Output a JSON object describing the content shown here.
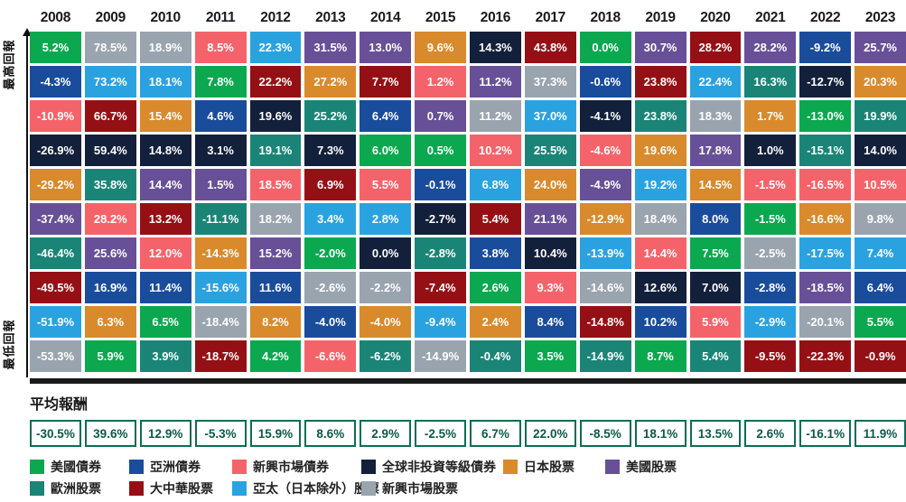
{
  "axis": {
    "highest_label": "最高回報",
    "lowest_label": "最低回報"
  },
  "average": {
    "label": "平均報酬"
  },
  "assets": {
    "us_bonds": {
      "label": "美國債券",
      "color": "#0BA84F"
    },
    "asia_bonds": {
      "label": "亞洲債券",
      "color": "#1A4C9C"
    },
    "em_bonds": {
      "label": "新興市場債券",
      "color": "#F5636A"
    },
    "global_hy": {
      "label": "全球非投資等級債券",
      "color": "#13203B"
    },
    "japan": {
      "label": "日本股票",
      "color": "#D88A2C"
    },
    "us_stocks": {
      "label": "美國股票",
      "color": "#675097"
    },
    "europe": {
      "label": "歐洲股票",
      "color": "#1A8577"
    },
    "greater_china": {
      "label": "大中華股票",
      "color": "#951015"
    },
    "apxj": {
      "label": "亞太（日本除外）股票",
      "color": "#2BA2E0"
    },
    "em_stocks": {
      "label": "新興市場股票",
      "color": "#9AA4AF"
    }
  },
  "legend_rows": [
    [
      "us_bonds",
      "asia_bonds",
      "em_bonds",
      "global_hy",
      "japan",
      "us_stocks"
    ],
    [
      "europe",
      "greater_china",
      "apxj",
      "em_stocks"
    ]
  ],
  "chart_data": {
    "type": "table",
    "description": "Yearly asset class returns ranked highest to lowest, 2008-2023, with average return per year",
    "years": [
      "2008",
      "2009",
      "2010",
      "2011",
      "2012",
      "2013",
      "2014",
      "2015",
      "2016",
      "2017",
      "2018",
      "2019",
      "2020",
      "2021",
      "2022",
      "2023"
    ],
    "columns": [
      {
        "year": "2008",
        "avg": "-30.5%",
        "cells": [
          {
            "v": "5.2%",
            "a": "us_bonds"
          },
          {
            "v": "-4.3%",
            "a": "asia_bonds"
          },
          {
            "v": "-10.9%",
            "a": "em_bonds"
          },
          {
            "v": "-26.9%",
            "a": "global_hy"
          },
          {
            "v": "-29.2%",
            "a": "japan"
          },
          {
            "v": "-37.4%",
            "a": "us_stocks"
          },
          {
            "v": "-46.4%",
            "a": "europe"
          },
          {
            "v": "-49.5%",
            "a": "greater_china"
          },
          {
            "v": "-51.9%",
            "a": "apxj"
          },
          {
            "v": "-53.3%",
            "a": "em_stocks"
          }
        ]
      },
      {
        "year": "2009",
        "avg": "39.6%",
        "cells": [
          {
            "v": "78.5%",
            "a": "em_stocks"
          },
          {
            "v": "73.2%",
            "a": "apxj"
          },
          {
            "v": "66.7%",
            "a": "greater_china"
          },
          {
            "v": "59.4%",
            "a": "global_hy"
          },
          {
            "v": "35.8%",
            "a": "europe"
          },
          {
            "v": "28.2%",
            "a": "em_bonds"
          },
          {
            "v": "25.6%",
            "a": "us_stocks"
          },
          {
            "v": "16.9%",
            "a": "asia_bonds"
          },
          {
            "v": "6.3%",
            "a": "japan"
          },
          {
            "v": "5.9%",
            "a": "us_bonds"
          }
        ]
      },
      {
        "year": "2010",
        "avg": "12.9%",
        "cells": [
          {
            "v": "18.9%",
            "a": "em_stocks"
          },
          {
            "v": "18.1%",
            "a": "apxj"
          },
          {
            "v": "15.4%",
            "a": "japan"
          },
          {
            "v": "14.8%",
            "a": "global_hy"
          },
          {
            "v": "14.4%",
            "a": "us_stocks"
          },
          {
            "v": "13.2%",
            "a": "greater_china"
          },
          {
            "v": "12.0%",
            "a": "em_bonds"
          },
          {
            "v": "11.4%",
            "a": "asia_bonds"
          },
          {
            "v": "6.5%",
            "a": "us_bonds"
          },
          {
            "v": "3.9%",
            "a": "europe"
          }
        ]
      },
      {
        "year": "2011",
        "avg": "-5.3%",
        "cells": [
          {
            "v": "8.5%",
            "a": "em_bonds"
          },
          {
            "v": "7.8%",
            "a": "us_bonds"
          },
          {
            "v": "4.6%",
            "a": "asia_bonds"
          },
          {
            "v": "3.1%",
            "a": "global_hy"
          },
          {
            "v": "1.5%",
            "a": "us_stocks"
          },
          {
            "v": "-11.1%",
            "a": "europe"
          },
          {
            "v": "-14.3%",
            "a": "japan"
          },
          {
            "v": "-15.6%",
            "a": "apxj"
          },
          {
            "v": "-18.4%",
            "a": "em_stocks"
          },
          {
            "v": "-18.7%",
            "a": "greater_china"
          }
        ]
      },
      {
        "year": "2012",
        "avg": "15.9%",
        "cells": [
          {
            "v": "22.3%",
            "a": "apxj"
          },
          {
            "v": "22.2%",
            "a": "greater_china"
          },
          {
            "v": "19.6%",
            "a": "global_hy"
          },
          {
            "v": "19.1%",
            "a": "europe"
          },
          {
            "v": "18.5%",
            "a": "em_bonds"
          },
          {
            "v": "18.2%",
            "a": "em_stocks"
          },
          {
            "v": "15.2%",
            "a": "us_stocks"
          },
          {
            "v": "11.6%",
            "a": "asia_bonds"
          },
          {
            "v": "8.2%",
            "a": "japan"
          },
          {
            "v": "4.2%",
            "a": "us_bonds"
          }
        ]
      },
      {
        "year": "2013",
        "avg": "8.6%",
        "cells": [
          {
            "v": "31.5%",
            "a": "us_stocks"
          },
          {
            "v": "27.2%",
            "a": "japan"
          },
          {
            "v": "25.2%",
            "a": "europe"
          },
          {
            "v": "7.3%",
            "a": "global_hy"
          },
          {
            "v": "6.9%",
            "a": "greater_china"
          },
          {
            "v": "3.4%",
            "a": "apxj"
          },
          {
            "v": "-2.0%",
            "a": "us_bonds"
          },
          {
            "v": "-2.6%",
            "a": "em_stocks"
          },
          {
            "v": "-4.0%",
            "a": "asia_bonds"
          },
          {
            "v": "-6.6%",
            "a": "em_bonds"
          }
        ]
      },
      {
        "year": "2014",
        "avg": "2.9%",
        "cells": [
          {
            "v": "13.0%",
            "a": "us_stocks"
          },
          {
            "v": "7.7%",
            "a": "greater_china"
          },
          {
            "v": "6.4%",
            "a": "asia_bonds"
          },
          {
            "v": "6.0%",
            "a": "us_bonds"
          },
          {
            "v": "5.5%",
            "a": "em_bonds"
          },
          {
            "v": "2.8%",
            "a": "apxj"
          },
          {
            "v": "0.0%",
            "a": "global_hy"
          },
          {
            "v": "-2.2%",
            "a": "em_stocks"
          },
          {
            "v": "-4.0%",
            "a": "japan"
          },
          {
            "v": "-6.2%",
            "a": "europe"
          }
        ]
      },
      {
        "year": "2015",
        "avg": "-2.5%",
        "cells": [
          {
            "v": "9.6%",
            "a": "japan"
          },
          {
            "v": "1.2%",
            "a": "em_bonds"
          },
          {
            "v": "0.7%",
            "a": "us_stocks"
          },
          {
            "v": "0.5%",
            "a": "us_bonds"
          },
          {
            "v": "-0.1%",
            "a": "asia_bonds"
          },
          {
            "v": "-2.7%",
            "a": "global_hy"
          },
          {
            "v": "-2.8%",
            "a": "europe"
          },
          {
            "v": "-7.4%",
            "a": "greater_china"
          },
          {
            "v": "-9.4%",
            "a": "apxj"
          },
          {
            "v": "-14.9%",
            "a": "em_stocks"
          }
        ]
      },
      {
        "year": "2016",
        "avg": "6.7%",
        "cells": [
          {
            "v": "14.3%",
            "a": "global_hy"
          },
          {
            "v": "11.2%",
            "a": "us_stocks"
          },
          {
            "v": "11.2%",
            "a": "em_stocks"
          },
          {
            "v": "10.2%",
            "a": "em_bonds"
          },
          {
            "v": "6.8%",
            "a": "apxj"
          },
          {
            "v": "5.4%",
            "a": "greater_china"
          },
          {
            "v": "3.8%",
            "a": "asia_bonds"
          },
          {
            "v": "2.6%",
            "a": "us_bonds"
          },
          {
            "v": "2.4%",
            "a": "japan"
          },
          {
            "v": "-0.4%",
            "a": "europe"
          }
        ]
      },
      {
        "year": "2017",
        "avg": "22.0%",
        "cells": [
          {
            "v": "43.8%",
            "a": "greater_china"
          },
          {
            "v": "37.3%",
            "a": "em_stocks"
          },
          {
            "v": "37.0%",
            "a": "apxj"
          },
          {
            "v": "25.5%",
            "a": "europe"
          },
          {
            "v": "24.0%",
            "a": "japan"
          },
          {
            "v": "21.1%",
            "a": "us_stocks"
          },
          {
            "v": "10.4%",
            "a": "global_hy"
          },
          {
            "v": "9.3%",
            "a": "em_bonds"
          },
          {
            "v": "8.4%",
            "a": "asia_bonds"
          },
          {
            "v": "3.5%",
            "a": "us_bonds"
          }
        ]
      },
      {
        "year": "2018",
        "avg": "-8.5%",
        "cells": [
          {
            "v": "0.0%",
            "a": "us_bonds"
          },
          {
            "v": "-0.6%",
            "a": "asia_bonds"
          },
          {
            "v": "-4.1%",
            "a": "global_hy"
          },
          {
            "v": "-4.6%",
            "a": "em_bonds"
          },
          {
            "v": "-4.9%",
            "a": "us_stocks"
          },
          {
            "v": "-12.9%",
            "a": "japan"
          },
          {
            "v": "-13.9%",
            "a": "apxj"
          },
          {
            "v": "-14.6%",
            "a": "em_stocks"
          },
          {
            "v": "-14.8%",
            "a": "greater_china"
          },
          {
            "v": "-14.9%",
            "a": "europe"
          }
        ]
      },
      {
        "year": "2019",
        "avg": "18.1%",
        "cells": [
          {
            "v": "30.7%",
            "a": "us_stocks"
          },
          {
            "v": "23.8%",
            "a": "greater_china"
          },
          {
            "v": "23.8%",
            "a": "europe"
          },
          {
            "v": "19.6%",
            "a": "japan"
          },
          {
            "v": "19.2%",
            "a": "apxj"
          },
          {
            "v": "18.4%",
            "a": "em_stocks"
          },
          {
            "v": "14.4%",
            "a": "em_bonds"
          },
          {
            "v": "12.6%",
            "a": "global_hy"
          },
          {
            "v": "10.2%",
            "a": "asia_bonds"
          },
          {
            "v": "8.7%",
            "a": "us_bonds"
          }
        ]
      },
      {
        "year": "2020",
        "avg": "13.5%",
        "cells": [
          {
            "v": "28.2%",
            "a": "greater_china"
          },
          {
            "v": "22.4%",
            "a": "apxj"
          },
          {
            "v": "18.3%",
            "a": "em_stocks"
          },
          {
            "v": "17.8%",
            "a": "us_stocks"
          },
          {
            "v": "14.5%",
            "a": "japan"
          },
          {
            "v": "8.0%",
            "a": "asia_bonds"
          },
          {
            "v": "7.5%",
            "a": "us_bonds"
          },
          {
            "v": "7.0%",
            "a": "global_hy"
          },
          {
            "v": "5.9%",
            "a": "em_bonds"
          },
          {
            "v": "5.4%",
            "a": "europe"
          }
        ]
      },
      {
        "year": "2021",
        "avg": "2.6%",
        "cells": [
          {
            "v": "28.2%",
            "a": "us_stocks"
          },
          {
            "v": "16.3%",
            "a": "europe"
          },
          {
            "v": "1.7%",
            "a": "japan"
          },
          {
            "v": "1.0%",
            "a": "global_hy"
          },
          {
            "v": "-1.5%",
            "a": "em_bonds"
          },
          {
            "v": "-1.5%",
            "a": "us_bonds"
          },
          {
            "v": "-2.5%",
            "a": "em_stocks"
          },
          {
            "v": "-2.8%",
            "a": "asia_bonds"
          },
          {
            "v": "-2.9%",
            "a": "apxj"
          },
          {
            "v": "-9.5%",
            "a": "greater_china"
          }
        ]
      },
      {
        "year": "2022",
        "avg": "-16.1%",
        "cells": [
          {
            "v": "-9.2%",
            "a": "asia_bonds"
          },
          {
            "v": "-12.7%",
            "a": "global_hy"
          },
          {
            "v": "-13.0%",
            "a": "us_bonds"
          },
          {
            "v": "-15.1%",
            "a": "europe"
          },
          {
            "v": "-16.5%",
            "a": "em_bonds"
          },
          {
            "v": "-16.6%",
            "a": "japan"
          },
          {
            "v": "-17.5%",
            "a": "apxj"
          },
          {
            "v": "-18.5%",
            "a": "us_stocks"
          },
          {
            "v": "-20.1%",
            "a": "em_stocks"
          },
          {
            "v": "-22.3%",
            "a": "greater_china"
          }
        ]
      },
      {
        "year": "2023",
        "avg": "11.9%",
        "cells": [
          {
            "v": "25.7%",
            "a": "us_stocks"
          },
          {
            "v": "20.3%",
            "a": "japan"
          },
          {
            "v": "19.9%",
            "a": "europe"
          },
          {
            "v": "14.0%",
            "a": "global_hy"
          },
          {
            "v": "10.5%",
            "a": "em_bonds"
          },
          {
            "v": "9.8%",
            "a": "em_stocks"
          },
          {
            "v": "7.4%",
            "a": "apxj"
          },
          {
            "v": "6.4%",
            "a": "asia_bonds"
          },
          {
            "v": "5.5%",
            "a": "us_bonds"
          },
          {
            "v": "-0.9%",
            "a": "greater_china"
          }
        ]
      }
    ]
  }
}
